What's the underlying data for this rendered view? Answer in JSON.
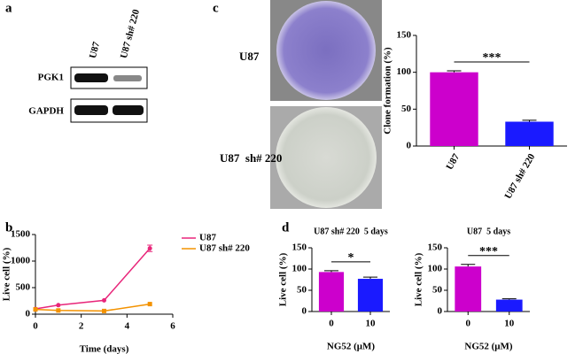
{
  "panel_labels": [
    "a",
    "b",
    "c",
    "d"
  ],
  "blot": {
    "lanes": [
      "U87",
      "U87 sh# 220"
    ],
    "rows": [
      "PGK1",
      "GAPDH"
    ]
  },
  "plates": {
    "rows": [
      "U87",
      "U87  sh# 220"
    ]
  },
  "chart_data": [
    {
      "type": "bar",
      "ylabel": "Clone formation (%)",
      "categories": [
        "U87",
        "U87 sh# 220"
      ],
      "values": [
        100,
        33
      ],
      "errors": [
        2,
        2
      ],
      "colors": [
        "#cc00cc",
        "#1a1aff"
      ],
      "ylim": [
        0,
        150
      ],
      "yticks": [
        0,
        50,
        100,
        150
      ],
      "annotation": "***"
    },
    {
      "type": "line",
      "xlabel": "Time (days)",
      "ylabel": "Live cell (%)",
      "xlim": [
        0,
        6
      ],
      "xticks": [
        0,
        2,
        4,
        6
      ],
      "ylim": [
        0,
        1500
      ],
      "yticks": [
        0,
        500,
        1000,
        1500
      ],
      "x": [
        0,
        1,
        3,
        5
      ],
      "series": [
        {
          "name": "U87",
          "color": "#e8267a",
          "values": [
            100,
            170,
            260,
            1240
          ],
          "errors": [
            null,
            null,
            null,
            60
          ]
        },
        {
          "name": "U87 sh# 220",
          "color": "#f39200",
          "values": [
            90,
            70,
            60,
            190
          ],
          "errors": [
            null,
            null,
            null,
            null
          ]
        }
      ]
    },
    {
      "type": "bar",
      "title": "U87 sh# 220  5 days",
      "xlabel": "NG52 (μM)",
      "ylabel": "Live cell (%)",
      "categories": [
        "0",
        "10"
      ],
      "values": [
        93,
        77
      ],
      "errors": [
        3,
        4
      ],
      "colors": [
        "#cc00cc",
        "#1a1aff"
      ],
      "ylim": [
        0,
        150
      ],
      "yticks": [
        0,
        50,
        100,
        150
      ],
      "annotation": "*"
    },
    {
      "type": "bar",
      "title": "U87  5 days",
      "xlabel": "NG52 (μM)",
      "ylabel": "Live cell (%)",
      "categories": [
        "0",
        "10"
      ],
      "values": [
        106,
        28
      ],
      "errors": [
        5,
        2
      ],
      "colors": [
        "#cc00cc",
        "#1a1aff"
      ],
      "ylim": [
        0,
        150
      ],
      "yticks": [
        0,
        50,
        100,
        150
      ],
      "annotation": "***"
    }
  ]
}
